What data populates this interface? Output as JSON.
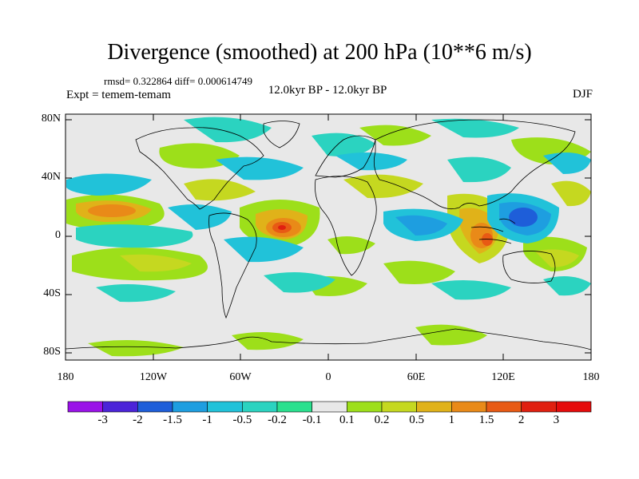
{
  "title": "Divergence (smoothed) at 200 hPa (10**6 m/s)",
  "stats_text": "rmsd= 0.322864 diff= 0.000614749",
  "experiment": "Expt = temem-temam",
  "period": "12.0kyr BP - 12.0kyr BP",
  "season": "DJF",
  "lat_labels": [
    "80N",
    "40N",
    "0",
    "40S",
    "80S"
  ],
  "lon_labels": [
    "180",
    "120W",
    "60W",
    "0",
    "60E",
    "120E",
    "180"
  ],
  "colorbar": {
    "labels": [
      "-3",
      "-2",
      "-1.5",
      "-1",
      "-0.5",
      "-0.2",
      "-0.1",
      "0.1",
      "0.2",
      "0.5",
      "1",
      "1.5",
      "2",
      "3"
    ],
    "colors": [
      "#9a12e8",
      "#4b24d8",
      "#1e5ed9",
      "#1e9ee0",
      "#21c2d9",
      "#2bd3c0",
      "#2ae08e",
      "#e8e8e8",
      "#9ddf1a",
      "#c5d820",
      "#e0b219",
      "#e98a18",
      "#e85a14",
      "#e02010",
      "#e50b0b"
    ]
  },
  "colors": {
    "background": "#e8e8e8"
  }
}
